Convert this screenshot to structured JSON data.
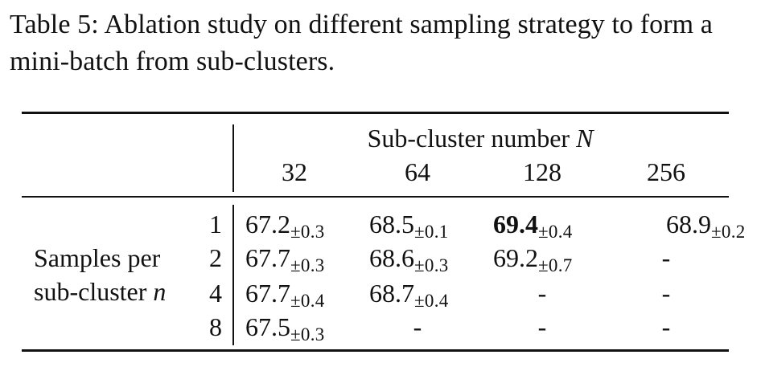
{
  "caption": "Table 5: Ablation study on different sampling strategy to form a mini-batch from sub-clusters.",
  "table": {
    "col_group_label": "Sub-cluster number",
    "col_group_var": "N",
    "columns": [
      "32",
      "64",
      "128",
      "256"
    ],
    "row_group_label_line1": "Samples per",
    "row_group_label_line2": "sub-cluster",
    "row_group_var": "n",
    "rows": [
      {
        "n": "1",
        "cells": [
          {
            "value": "67.2",
            "pm": "±0.3"
          },
          {
            "value": "68.5",
            "pm": "±0.1"
          },
          {
            "value": "69.4",
            "pm": "±0.4",
            "bold": true
          },
          {
            "value": "68.9",
            "pm": "±0.2"
          }
        ]
      },
      {
        "n": "2",
        "cells": [
          {
            "value": "67.7",
            "pm": "±0.3"
          },
          {
            "value": "68.6",
            "pm": "±0.3"
          },
          {
            "value": "69.2",
            "pm": "±0.7"
          },
          {
            "value": "-",
            "pm": ""
          }
        ]
      },
      {
        "n": "4",
        "cells": [
          {
            "value": "67.7",
            "pm": "±0.4"
          },
          {
            "value": "68.7",
            "pm": "±0.4"
          },
          {
            "value": "-",
            "pm": ""
          },
          {
            "value": "-",
            "pm": ""
          }
        ]
      },
      {
        "n": "8",
        "cells": [
          {
            "value": "67.5",
            "pm": "±0.3"
          },
          {
            "value": "-",
            "pm": ""
          },
          {
            "value": "-",
            "pm": ""
          },
          {
            "value": "-",
            "pm": ""
          }
        ]
      }
    ]
  }
}
